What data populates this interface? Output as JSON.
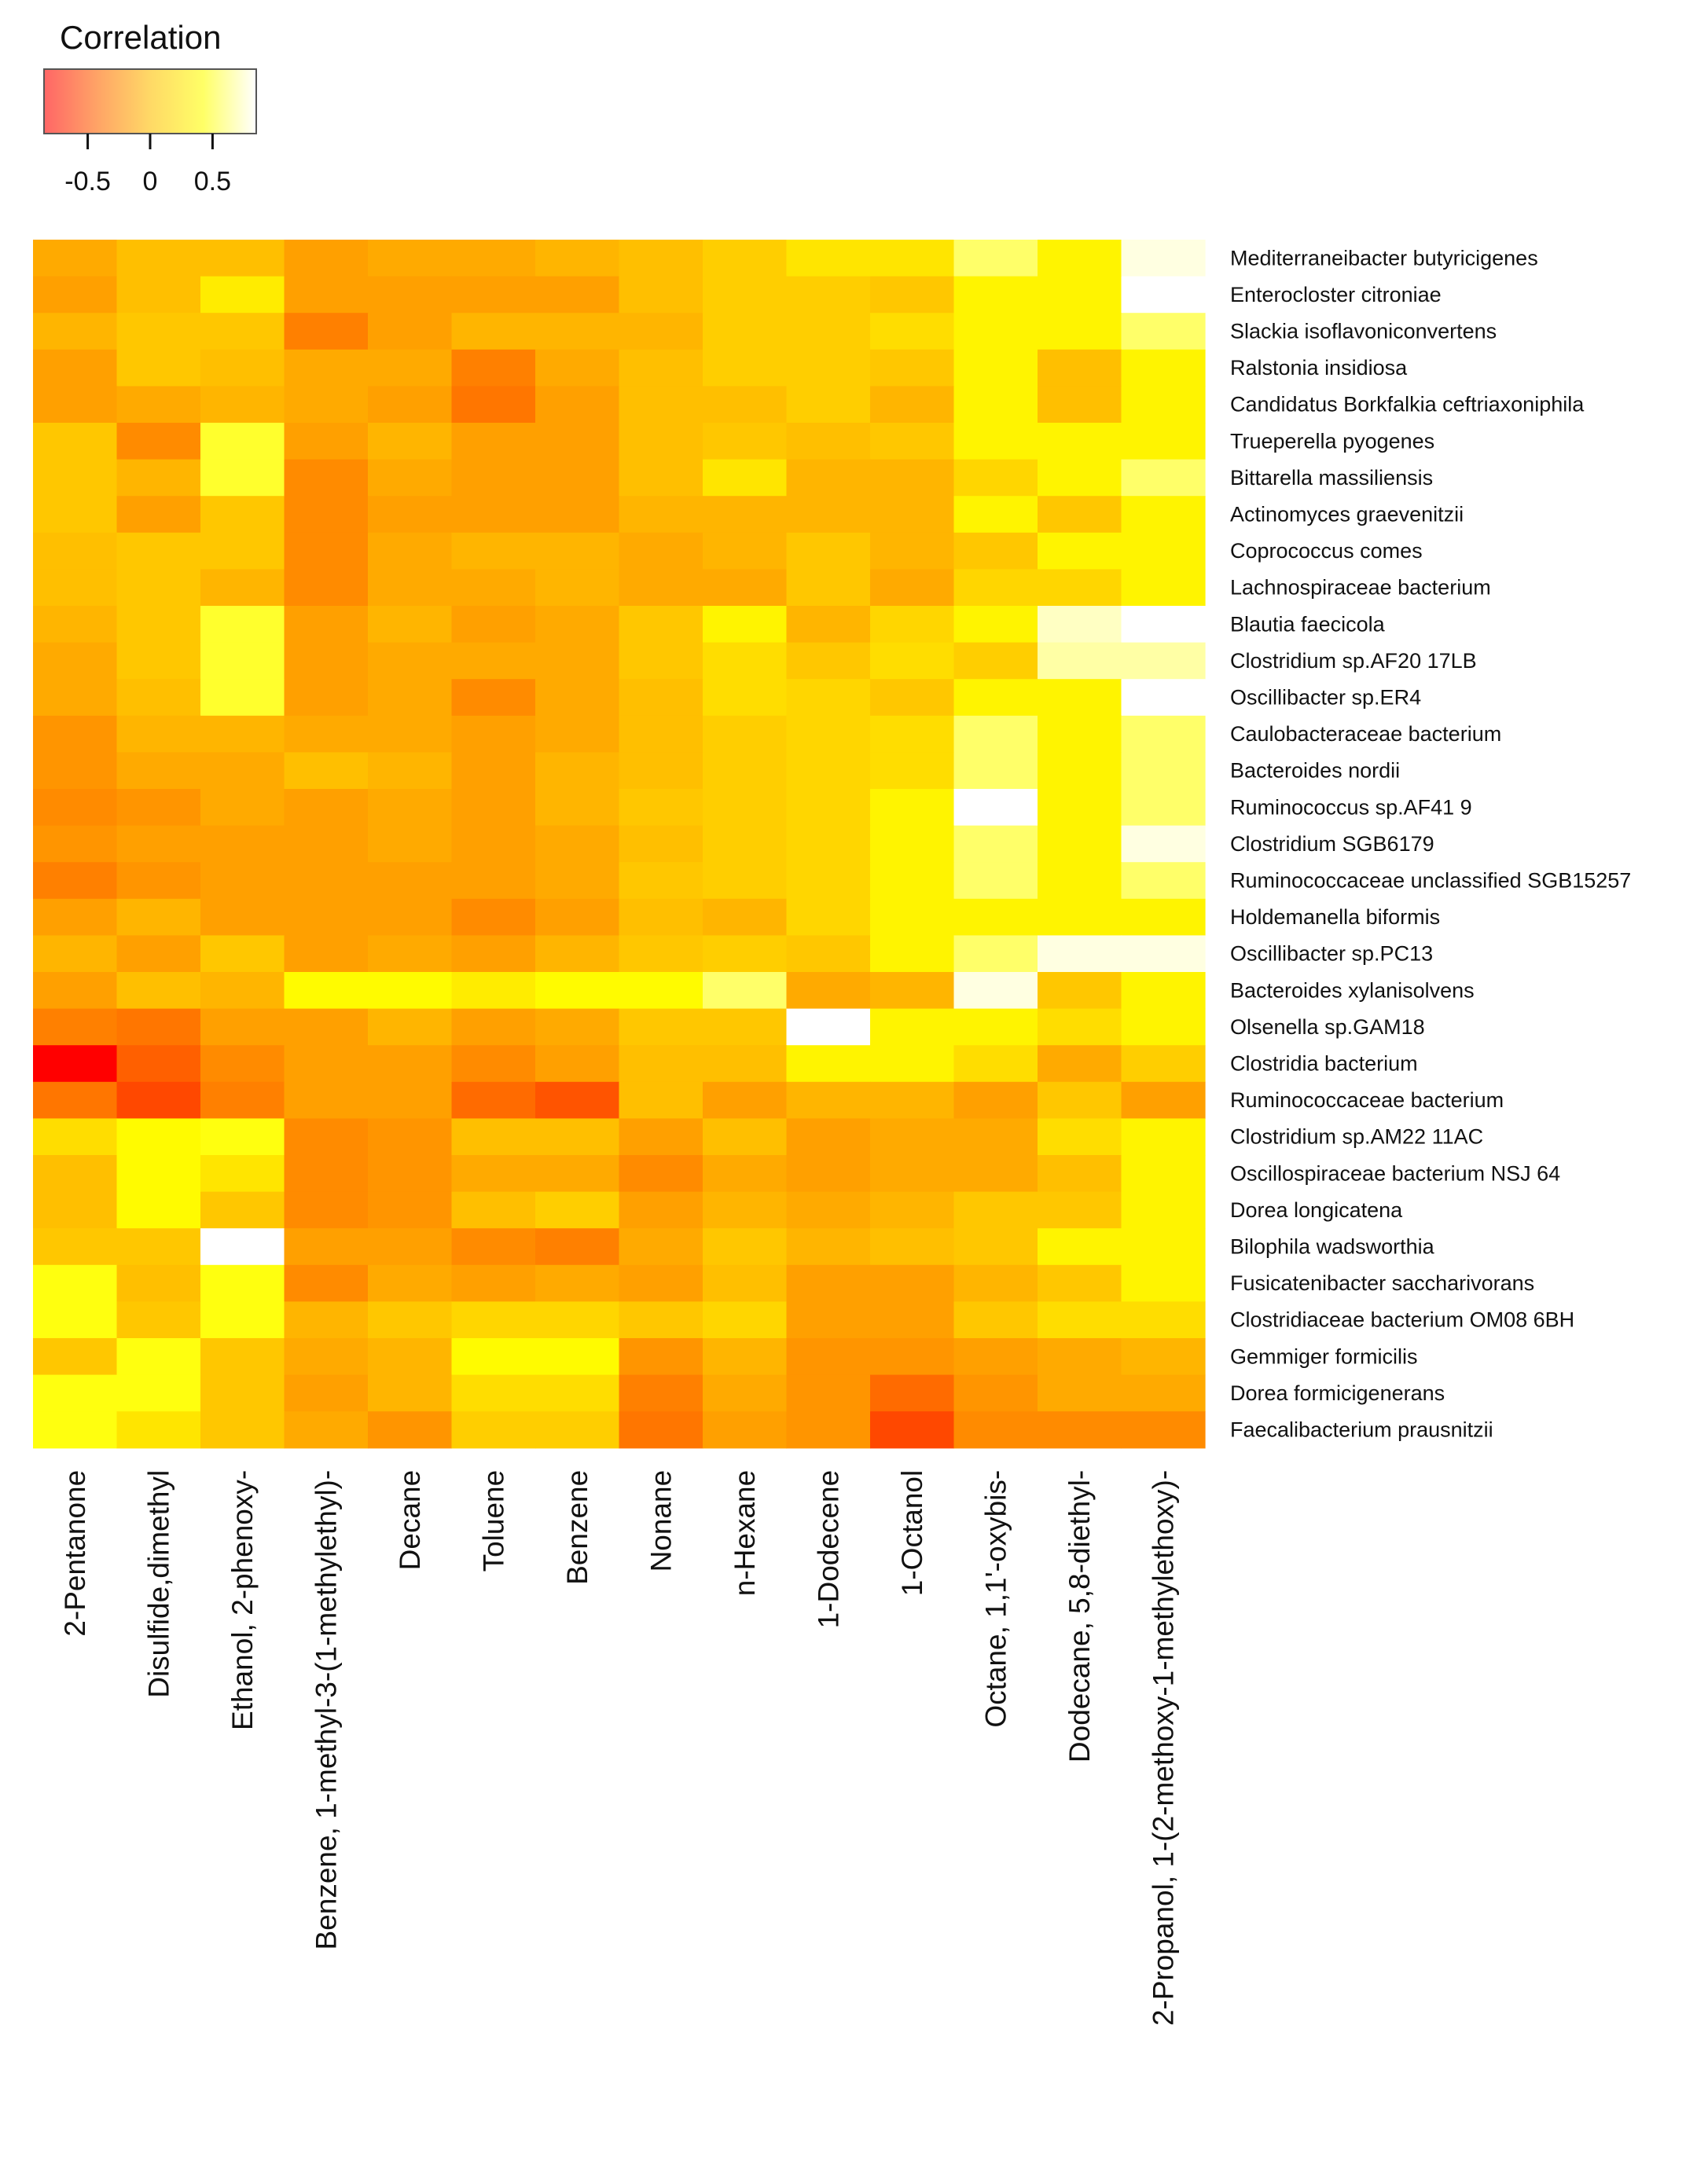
{
  "chart_data": {
    "type": "heatmap",
    "legend": {
      "title": "Correlation",
      "range": [
        -0.85,
        0.85
      ],
      "ticks": [
        -0.5,
        0,
        0.5
      ],
      "tick_labels": [
        "-0.5",
        "0",
        "0.5"
      ],
      "colors": [
        "#ff0000",
        "#ff6600",
        "#ffbf00",
        "#ffff00",
        "#ffffff"
      ],
      "placement": "top-left"
    },
    "columns": [
      "2-Pentanone",
      "Disulfide,dimethyl",
      "Ethanol, 2-phenoxy-",
      "Benzene, 1-methyl-3-(1-methylethyl)-",
      "Decane",
      "Toluene",
      "Benzene",
      "Nonane",
      "n-Hexane",
      "1-Dodecene",
      "1-Octanol",
      "Octane, 1,1'-oxybis-",
      "Dodecane, 5,8-diethyl-",
      "2-Propanol, 1-(2-methoxy-1-methylethoxy)-"
    ],
    "rows": [
      "Mediterraneibacter butyricigenes",
      "Enterocloster citroniae",
      "Slackia isoflavoniconvertens",
      "Ralstonia insidiosa",
      "Candidatus Borkfalkia ceftriaxoniphila",
      "Trueperella pyogenes",
      "Bittarella massiliensis",
      "Actinomyces graevenitzii",
      "Coprococcus comes",
      "Lachnospiraceae bacterium",
      "Blautia faecicola",
      "Clostridium sp.AF20 17LB",
      "Oscillibacter sp.ER4",
      "Caulobacteraceae bacterium",
      "Bacteroides nordii",
      "Ruminococcus sp.AF41 9",
      "Clostridium SGB6179",
      "Ruminococcaceae unclassified SGB15257",
      "Holdemanella biformis",
      "Oscillibacter sp.PC13",
      "Bacteroides xylanisolvens",
      "Olsenella sp.GAM18",
      "Clostridia bacterium",
      "Ruminococcaceae bacterium",
      "Clostridium sp.AM22 11AC",
      "Oscillospiraceae bacterium NSJ 64",
      "Dorea longicatena",
      "Bilophila wadsworthia",
      "Fusicatenibacter saccharivorans",
      "Clostridiaceae bacterium OM08 6BH",
      "Gemmiger formicilis",
      "Dorea formicigenerans",
      "Faecalibacterium prausnitzii"
    ],
    "values": [
      [
        -0.1,
        0.0,
        0.0,
        -0.15,
        -0.1,
        -0.1,
        -0.05,
        0.0,
        0.1,
        0.25,
        0.25,
        0.6,
        0.35,
        0.8
      ],
      [
        -0.15,
        0.0,
        0.3,
        -0.15,
        -0.15,
        -0.15,
        -0.15,
        0.0,
        0.1,
        0.1,
        0.05,
        0.35,
        0.35,
        0.85
      ],
      [
        -0.05,
        0.05,
        0.05,
        -0.3,
        -0.15,
        -0.05,
        -0.05,
        -0.05,
        0.1,
        0.1,
        0.2,
        0.35,
        0.35,
        0.6
      ],
      [
        -0.15,
        0.05,
        0.0,
        -0.1,
        -0.1,
        -0.3,
        -0.1,
        0.0,
        0.1,
        0.1,
        0.05,
        0.35,
        0.0,
        0.35
      ],
      [
        -0.15,
        -0.1,
        -0.05,
        -0.1,
        -0.15,
        -0.35,
        -0.15,
        0.0,
        0.0,
        0.1,
        -0.05,
        0.35,
        0.0,
        0.35
      ],
      [
        0.05,
        -0.25,
        0.5,
        -0.15,
        -0.05,
        -0.15,
        -0.15,
        0.0,
        0.05,
        0.0,
        0.05,
        0.35,
        0.35,
        0.35
      ],
      [
        0.05,
        -0.05,
        0.5,
        -0.25,
        -0.1,
        -0.15,
        -0.15,
        0.0,
        0.25,
        -0.05,
        -0.05,
        0.15,
        0.35,
        0.6
      ],
      [
        0.05,
        -0.15,
        0.05,
        -0.25,
        -0.15,
        -0.15,
        -0.15,
        -0.05,
        -0.05,
        -0.05,
        -0.05,
        0.35,
        0.05,
        0.35
      ],
      [
        0.0,
        0.05,
        0.05,
        -0.25,
        -0.1,
        -0.05,
        -0.05,
        -0.1,
        -0.05,
        0.05,
        -0.05,
        0.05,
        0.35,
        0.35
      ],
      [
        0.0,
        0.05,
        -0.05,
        -0.25,
        -0.1,
        -0.1,
        -0.05,
        -0.1,
        -0.1,
        0.05,
        -0.1,
        0.15,
        0.15,
        0.35
      ],
      [
        -0.05,
        0.05,
        0.5,
        -0.15,
        -0.05,
        -0.15,
        -0.1,
        0.05,
        0.35,
        -0.05,
        0.15,
        0.35,
        0.75,
        0.85
      ],
      [
        -0.1,
        0.05,
        0.5,
        -0.15,
        -0.1,
        -0.1,
        -0.1,
        0.05,
        0.2,
        0.05,
        0.2,
        0.1,
        0.7,
        0.7
      ],
      [
        -0.1,
        0.0,
        0.5,
        -0.15,
        -0.1,
        -0.25,
        -0.1,
        0.0,
        0.2,
        0.15,
        0.05,
        0.35,
        0.35,
        0.85
      ],
      [
        -0.2,
        -0.05,
        -0.05,
        -0.1,
        -0.1,
        -0.15,
        -0.1,
        0.0,
        0.1,
        0.15,
        0.2,
        0.6,
        0.35,
        0.6
      ],
      [
        -0.2,
        -0.1,
        -0.1,
        0.0,
        -0.05,
        -0.15,
        -0.05,
        0.0,
        0.1,
        0.15,
        0.2,
        0.6,
        0.35,
        0.6
      ],
      [
        -0.25,
        -0.2,
        -0.1,
        -0.15,
        -0.1,
        -0.15,
        -0.05,
        0.05,
        0.1,
        0.15,
        0.35,
        0.85,
        0.35,
        0.6
      ],
      [
        -0.2,
        -0.15,
        -0.15,
        -0.15,
        -0.1,
        -0.15,
        -0.1,
        0.0,
        0.1,
        0.15,
        0.35,
        0.6,
        0.35,
        0.8
      ],
      [
        -0.3,
        -0.2,
        -0.15,
        -0.15,
        -0.15,
        -0.15,
        -0.1,
        0.05,
        0.1,
        0.15,
        0.35,
        0.6,
        0.35,
        0.6
      ],
      [
        -0.15,
        -0.05,
        -0.15,
        -0.15,
        -0.15,
        -0.25,
        -0.15,
        0.0,
        -0.05,
        0.15,
        0.35,
        0.35,
        0.35,
        0.35
      ],
      [
        -0.05,
        -0.15,
        0.05,
        -0.15,
        -0.1,
        -0.15,
        -0.05,
        0.05,
        0.1,
        0.05,
        0.35,
        0.6,
        0.8,
        0.8
      ],
      [
        -0.15,
        0.0,
        -0.05,
        0.4,
        0.4,
        0.3,
        0.4,
        0.4,
        0.6,
        -0.1,
        -0.05,
        0.8,
        0.05,
        0.35
      ],
      [
        -0.3,
        -0.35,
        -0.15,
        -0.15,
        -0.05,
        -0.15,
        -0.1,
        0.05,
        0.05,
        0.85,
        0.35,
        0.35,
        0.2,
        0.35
      ],
      [
        -0.85,
        -0.45,
        -0.25,
        -0.15,
        -0.15,
        -0.25,
        -0.15,
        0.0,
        0.0,
        0.35,
        0.35,
        0.2,
        -0.1,
        0.1
      ],
      [
        -0.35,
        -0.55,
        -0.3,
        -0.15,
        -0.15,
        -0.4,
        -0.5,
        0.0,
        -0.15,
        -0.05,
        -0.05,
        -0.15,
        0.05,
        -0.15
      ],
      [
        0.2,
        0.4,
        0.45,
        -0.25,
        -0.2,
        0.0,
        0.0,
        -0.15,
        0.0,
        -0.15,
        -0.1,
        -0.1,
        0.2,
        0.35
      ],
      [
        0.0,
        0.4,
        0.25,
        -0.25,
        -0.2,
        -0.1,
        -0.1,
        -0.25,
        -0.1,
        -0.15,
        -0.1,
        -0.1,
        0.0,
        0.35
      ],
      [
        0.0,
        0.4,
        0.05,
        -0.25,
        -0.2,
        0.0,
        0.1,
        -0.15,
        -0.05,
        -0.1,
        -0.05,
        0.05,
        0.05,
        0.35
      ],
      [
        0.05,
        0.05,
        0.85,
        -0.15,
        -0.15,
        -0.25,
        -0.3,
        -0.1,
        0.05,
        -0.05,
        0.0,
        0.05,
        0.35,
        0.35
      ],
      [
        0.45,
        0.0,
        0.45,
        -0.25,
        -0.1,
        -0.15,
        -0.1,
        -0.15,
        0.0,
        -0.15,
        -0.15,
        -0.05,
        0.05,
        0.35
      ],
      [
        0.45,
        0.05,
        0.45,
        -0.05,
        0.05,
        0.15,
        0.15,
        0.05,
        0.15,
        -0.15,
        -0.15,
        0.05,
        0.2,
        0.2
      ],
      [
        0.05,
        0.45,
        0.05,
        -0.1,
        -0.05,
        0.4,
        0.4,
        -0.2,
        -0.05,
        -0.2,
        -0.2,
        -0.15,
        -0.1,
        -0.05
      ],
      [
        0.45,
        0.45,
        0.05,
        -0.15,
        -0.05,
        0.2,
        0.2,
        -0.3,
        -0.1,
        -0.2,
        -0.4,
        -0.2,
        -0.1,
        -0.1
      ],
      [
        0.45,
        0.25,
        0.05,
        -0.1,
        -0.2,
        0.1,
        0.1,
        -0.35,
        -0.15,
        -0.2,
        -0.55,
        -0.25,
        -0.25,
        -0.25
      ]
    ]
  }
}
